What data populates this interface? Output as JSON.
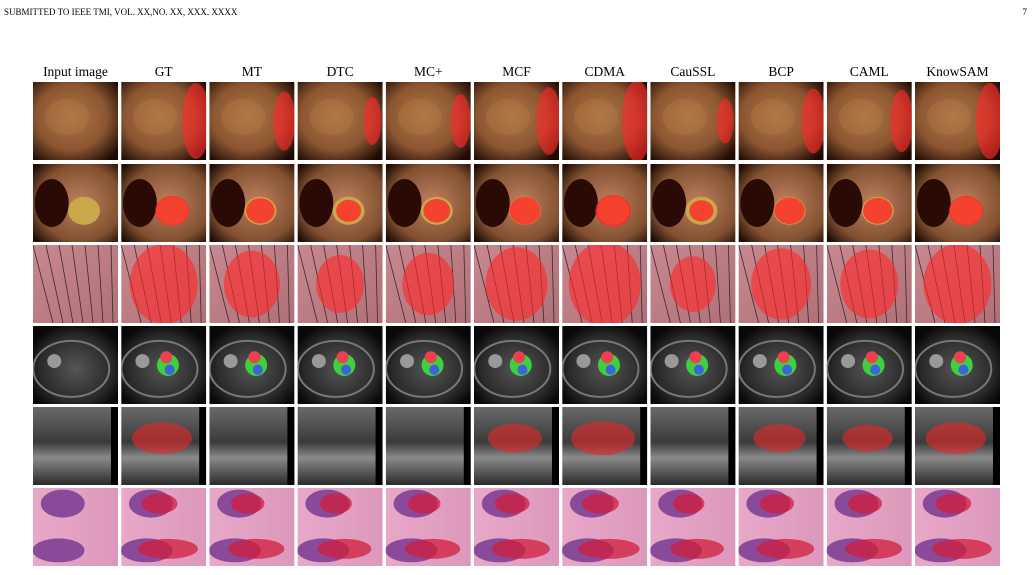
{
  "header": {
    "running_title": "SUBMITTED TO IEEE TMI, VOL. XX,NO. XX, XXX. XXXX",
    "page_number": "7"
  },
  "figure": {
    "column_labels": [
      "Input image",
      "GT",
      "MT",
      "DTC",
      "MC+",
      "MCF",
      "CDMA",
      "CauSSL",
      "BCP",
      "CAML",
      "KnowSAM"
    ]
  }
}
